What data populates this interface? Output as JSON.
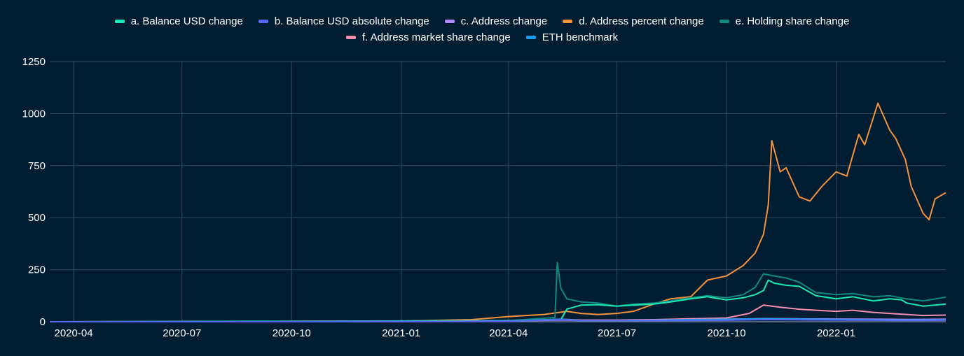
{
  "chart_data": {
    "type": "line",
    "title": "",
    "xlabel": "",
    "ylabel": "",
    "ylim": [
      0,
      1250
    ],
    "xlim": [
      "2020-03-12",
      "2022-04-03"
    ],
    "grid": true,
    "legend_position": "top-center",
    "x_ticks": [
      "2020-04",
      "2020-07",
      "2020-10",
      "2021-01",
      "2021-04",
      "2021-07",
      "2021-10",
      "2022-01"
    ],
    "y_ticks": [
      "0",
      "250",
      "500",
      "750",
      "1000",
      "1250"
    ],
    "series": [
      {
        "name": "a. Balance USD change",
        "color": "#1de9b6",
        "x": [
          "2020-03-12",
          "2020-06-01",
          "2020-09-01",
          "2020-12-01",
          "2021-02-01",
          "2021-04-01",
          "2021-05-15",
          "2021-05-20",
          "2021-06-01",
          "2021-06-15",
          "2021-07-01",
          "2021-07-15",
          "2021-08-01",
          "2021-08-15",
          "2021-09-01",
          "2021-09-15",
          "2021-10-01",
          "2021-10-15",
          "2021-10-25",
          "2021-11-01",
          "2021-11-05",
          "2021-11-10",
          "2021-11-20",
          "2021-12-01",
          "2021-12-15",
          "2022-01-01",
          "2022-01-15",
          "2022-02-01",
          "2022-02-15",
          "2022-02-25",
          "2022-03-01",
          "2022-03-15",
          "2022-04-03"
        ],
        "values": [
          0,
          1,
          2,
          3,
          4,
          5,
          10,
          60,
          80,
          82,
          75,
          80,
          85,
          95,
          110,
          120,
          105,
          115,
          130,
          150,
          200,
          185,
          175,
          170,
          125,
          110,
          120,
          100,
          110,
          105,
          90,
          75,
          85
        ]
      },
      {
        "name": "b. Balance USD absolute change",
        "color": "#5567f5",
        "x": [
          "2020-03-12",
          "2020-09-01",
          "2021-01-01",
          "2021-04-01",
          "2021-05-15",
          "2021-06-01",
          "2021-07-01",
          "2021-08-01",
          "2021-09-01",
          "2021-10-01",
          "2021-11-01",
          "2021-12-01",
          "2022-01-01",
          "2022-02-01",
          "2022-03-01",
          "2022-04-03"
        ],
        "values": [
          0,
          0,
          1,
          2,
          10,
          5,
          5,
          5,
          6,
          7,
          10,
          9,
          8,
          7,
          6,
          7
        ]
      },
      {
        "name": "c. Address change",
        "color": "#b388ff",
        "x": [
          "2020-03-12",
          "2020-09-01",
          "2021-01-01",
          "2021-04-01",
          "2021-05-15",
          "2021-06-01",
          "2021-07-01",
          "2021-08-01",
          "2021-09-01",
          "2021-10-01",
          "2021-11-01",
          "2021-12-01",
          "2022-01-01",
          "2022-02-01",
          "2022-03-01",
          "2022-04-03"
        ],
        "values": [
          0,
          0,
          1,
          3,
          8,
          6,
          6,
          8,
          10,
          12,
          15,
          14,
          13,
          12,
          11,
          12
        ]
      },
      {
        "name": "d. Address percent change",
        "color": "#f5923e",
        "x": [
          "2020-03-12",
          "2020-08-01",
          "2020-11-01",
          "2021-01-01",
          "2021-03-01",
          "2021-04-01",
          "2021-05-01",
          "2021-05-20",
          "2021-06-01",
          "2021-06-15",
          "2021-07-01",
          "2021-07-15",
          "2021-08-01",
          "2021-08-15",
          "2021-09-01",
          "2021-09-15",
          "2021-10-01",
          "2021-10-15",
          "2021-10-25",
          "2021-11-01",
          "2021-11-05",
          "2021-11-08",
          "2021-11-15",
          "2021-11-20",
          "2021-12-01",
          "2021-12-10",
          "2021-12-20",
          "2022-01-01",
          "2022-01-10",
          "2022-01-20",
          "2022-01-25",
          "2022-02-05",
          "2022-02-15",
          "2022-02-20",
          "2022-02-28",
          "2022-03-05",
          "2022-03-15",
          "2022-03-20",
          "2022-03-25",
          "2022-04-03"
        ],
        "values": [
          0,
          1,
          2,
          3,
          10,
          25,
          35,
          50,
          40,
          35,
          40,
          50,
          85,
          110,
          120,
          200,
          220,
          270,
          330,
          420,
          560,
          870,
          720,
          740,
          600,
          580,
          650,
          720,
          700,
          900,
          850,
          1050,
          920,
          880,
          780,
          650,
          520,
          490,
          590,
          620
        ]
      },
      {
        "name": "e. Holding share change",
        "color": "#0e8a80",
        "x": [
          "2020-03-12",
          "2020-09-01",
          "2020-12-01",
          "2021-02-01",
          "2021-04-01",
          "2021-05-10",
          "2021-05-12",
          "2021-05-15",
          "2021-05-20",
          "2021-06-01",
          "2021-06-15",
          "2021-07-01",
          "2021-07-15",
          "2021-08-01",
          "2021-08-15",
          "2021-09-01",
          "2021-09-15",
          "2021-10-01",
          "2021-10-15",
          "2021-10-25",
          "2021-11-01",
          "2021-11-10",
          "2021-11-20",
          "2021-12-01",
          "2021-12-15",
          "2022-01-01",
          "2022-01-15",
          "2022-02-01",
          "2022-02-15",
          "2022-03-01",
          "2022-03-15",
          "2022-04-03"
        ],
        "values": [
          0,
          1,
          2,
          4,
          5,
          20,
          285,
          160,
          110,
          95,
          90,
          75,
          85,
          90,
          100,
          115,
          125,
          115,
          130,
          165,
          230,
          220,
          210,
          190,
          140,
          130,
          135,
          120,
          125,
          110,
          100,
          118
        ]
      },
      {
        "name": "f. Address market share change",
        "color": "#f48fb1",
        "x": [
          "2020-03-12",
          "2020-09-01",
          "2021-01-01",
          "2021-04-01",
          "2021-05-15",
          "2021-06-01",
          "2021-07-01",
          "2021-08-01",
          "2021-09-01",
          "2021-10-01",
          "2021-10-20",
          "2021-11-01",
          "2021-11-15",
          "2021-12-01",
          "2021-12-15",
          "2022-01-01",
          "2022-01-15",
          "2022-02-01",
          "2022-02-15",
          "2022-03-01",
          "2022-03-15",
          "2022-04-03"
        ],
        "values": [
          0,
          0,
          1,
          3,
          12,
          8,
          8,
          10,
          14,
          18,
          40,
          80,
          70,
          60,
          55,
          50,
          55,
          45,
          40,
          35,
          30,
          32
        ]
      },
      {
        "name": "ETH benchmark",
        "color": "#1e9bf0",
        "x": [
          "2020-03-12",
          "2020-09-01",
          "2021-01-01",
          "2021-04-01",
          "2021-05-15",
          "2021-06-01",
          "2021-07-01",
          "2021-08-01",
          "2021-09-01",
          "2021-10-01",
          "2021-11-01",
          "2021-12-01",
          "2022-01-01",
          "2022-02-01",
          "2022-03-01",
          "2022-04-03"
        ],
        "values": [
          0,
          0,
          1,
          3,
          12,
          6,
          5,
          7,
          10,
          12,
          14,
          13,
          11,
          9,
          8,
          9
        ]
      }
    ]
  }
}
